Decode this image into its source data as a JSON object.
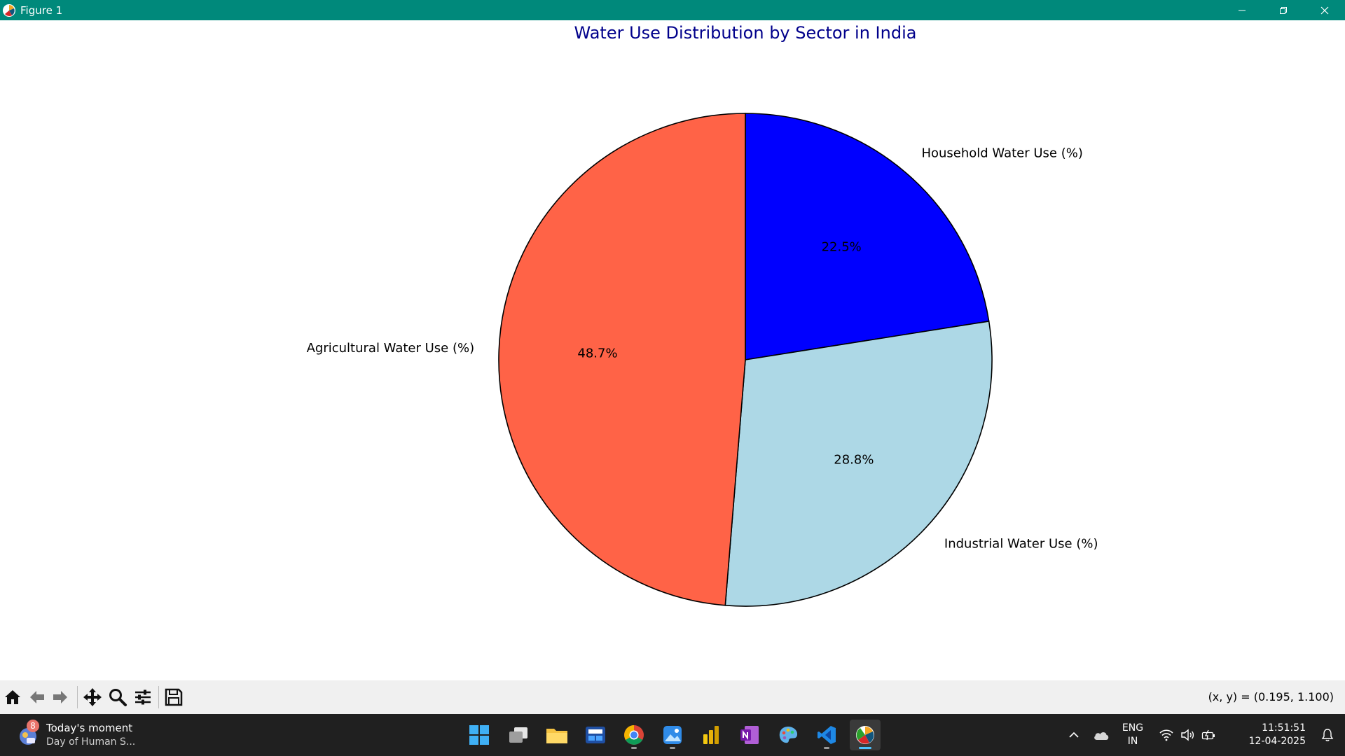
{
  "window": {
    "title": "Figure 1",
    "titlebar_color": "#00897b"
  },
  "chart_data": {
    "type": "pie",
    "title": "Water Use Distribution by Sector in India",
    "title_color": "#00008b",
    "categories": [
      "Household Water Use (%)",
      "Industrial Water Use (%)",
      "Agricultural Water Use (%)"
    ],
    "values": [
      22.5,
      28.8,
      48.7
    ],
    "value_labels": [
      "22.5%",
      "28.8%",
      "48.7%"
    ],
    "colors": [
      "#0000ff",
      "#add8e6",
      "#ff6347"
    ],
    "start_angle": 90,
    "direction": "clockwise",
    "edge_color": "#000000"
  },
  "toolbar": {
    "buttons": [
      "home-icon",
      "back-icon",
      "forward-icon",
      "pan-icon",
      "zoom-icon",
      "configure-subplots-icon",
      "save-icon"
    ],
    "coords_text": "(x, y) = (0.195, 1.100)"
  },
  "taskbar": {
    "widget": {
      "title": "Today's moment",
      "subtitle": "Day of Human S...",
      "badge": "8"
    },
    "apps": [
      "start-icon",
      "task-view-icon",
      "file-explorer-icon",
      "dev-home-icon",
      "chrome-icon",
      "photos-icon",
      "power-bi-icon",
      "onenote-icon",
      "paint-icon",
      "vscode-icon",
      "matplotlib-icon"
    ],
    "tray": {
      "lang_line1": "ENG",
      "lang_line2": "IN",
      "time": "11:51:51",
      "date": "12-04-2025"
    }
  }
}
